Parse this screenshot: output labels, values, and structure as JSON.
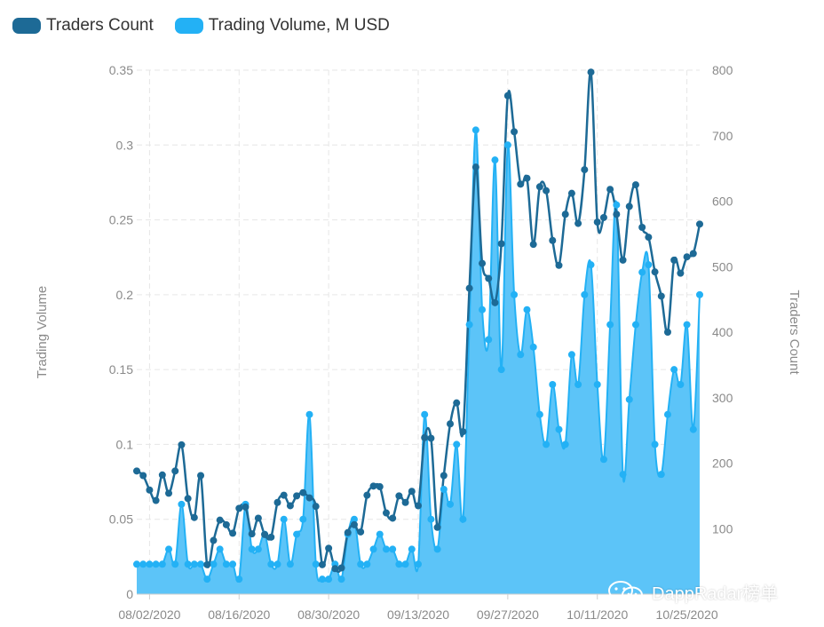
{
  "legend": {
    "items": [
      {
        "label": "Traders Count",
        "color": "#1d6a96"
      },
      {
        "label": "Trading Volume, M USD",
        "color": "#23b1f5"
      }
    ]
  },
  "watermark": {
    "text": "DappRadar榜单",
    "icon": "wechat-icon"
  },
  "colors": {
    "traders": "#1d6a96",
    "volume_line": "#23b1f5",
    "volume_fill": "#5cc4f8",
    "grid": "#e6e6e6"
  },
  "chart_data": {
    "type": "area",
    "ylabel_left": "Trading Volume",
    "ylabel_right": "Traders Count",
    "ylim_left": [
      0,
      0.35
    ],
    "ylim_right": [
      0,
      800
    ],
    "yticks_left": [
      "0",
      "0.05",
      "0.1",
      "0.15",
      "0.2",
      "0.25",
      "0.3",
      "0.35"
    ],
    "yticks_right": [
      "100",
      "200",
      "300",
      "400",
      "500",
      "600",
      "700",
      "800"
    ],
    "x_ticks": [
      "08/02/2020",
      "08/16/2020",
      "08/30/2020",
      "09/13/2020",
      "09/27/2020",
      "10/11/2020",
      "10/25/2020"
    ],
    "grid": true,
    "legend_position": "top-left",
    "start_date": "07/31/2020",
    "series": [
      {
        "name": "Trading Volume, M USD",
        "axis": "left",
        "type": "area",
        "values": [
          0.02,
          0.02,
          0.02,
          0.02,
          0.02,
          0.03,
          0.02,
          0.06,
          0.02,
          0.02,
          0.02,
          0.01,
          0.02,
          0.03,
          0.02,
          0.02,
          0.01,
          0.06,
          0.03,
          0.03,
          0.04,
          0.02,
          0.02,
          0.05,
          0.02,
          0.04,
          0.05,
          0.12,
          0.02,
          0.01,
          0.01,
          0.02,
          0.01,
          0.04,
          0.05,
          0.02,
          0.02,
          0.03,
          0.04,
          0.03,
          0.03,
          0.02,
          0.02,
          0.03,
          0.02,
          0.12,
          0.05,
          0.03,
          0.07,
          0.06,
          0.1,
          0.05,
          0.18,
          0.31,
          0.19,
          0.17,
          0.29,
          0.15,
          0.3,
          0.2,
          0.16,
          0.19,
          0.165,
          0.12,
          0.1,
          0.14,
          0.11,
          0.1,
          0.16,
          0.14,
          0.2,
          0.22,
          0.14,
          0.09,
          0.18,
          0.26,
          0.08,
          0.13,
          0.18,
          0.215,
          0.22,
          0.1,
          0.08,
          0.12,
          0.15,
          0.14,
          0.18,
          0.11,
          0.2
        ]
      },
      {
        "name": "Traders Count",
        "axis": "right",
        "type": "line",
        "values": [
          188,
          181,
          159,
          143,
          182,
          154,
          188,
          228,
          146,
          117,
          181,
          45,
          82,
          113,
          106,
          93,
          131,
          133,
          92,
          116,
          91,
          87,
          140,
          151,
          135,
          150,
          155,
          147,
          134,
          45,
          70,
          39,
          40,
          94,
          106,
          95,
          151,
          165,
          164,
          124,
          116,
          150,
          140,
          157,
          135,
          239,
          238,
          102,
          181,
          260,
          292,
          248,
          467,
          652,
          505,
          482,
          445,
          535,
          761,
          706,
          626,
          635,
          534,
          622,
          616,
          540,
          502,
          580,
          612,
          566,
          648,
          797,
          568,
          575,
          618,
          580,
          510,
          592,
          625,
          560,
          545,
          492,
          455,
          400,
          510,
          490,
          515,
          520,
          565
        ]
      }
    ]
  }
}
